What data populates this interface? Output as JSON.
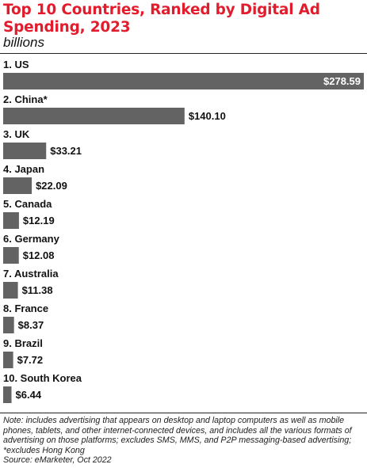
{
  "header": {
    "title": "Top 10 Countries, Ranked by Digital Ad Spending, 2023",
    "subtitle": "billions"
  },
  "footer": {
    "note": "Note: includes advertising that appears on desktop and laptop computers as well as mobile phones, tablets, and other internet-connected devices, and includes all the various formats of advertising on those platforms; excludes SMS, MMS, and P2P messaging-based advertising; *excludes Hong Kong",
    "source": "Source: eMarketer, Oct 2022"
  },
  "colors": {
    "title": "#e31c2d",
    "bar": "#636363",
    "inside_label": "#ffffff",
    "outside_label": "#111111"
  },
  "chart_data": {
    "type": "bar",
    "orientation": "horizontal",
    "title": "Top 10 Countries, Ranked by Digital Ad Spending, 2023",
    "subtitle": "billions",
    "categories": [
      "1. US",
      "2. China*",
      "3. UK",
      "4. Japan",
      "5. Canada",
      "6. Germany",
      "7. Australia",
      "8. France",
      "9. Brazil",
      "10. South Korea"
    ],
    "values": [
      278.59,
      140.1,
      33.21,
      22.09,
      12.19,
      12.08,
      11.38,
      8.37,
      7.72,
      6.44
    ],
    "value_labels": [
      "$278.59",
      "$140.10",
      "$33.21",
      "$22.09",
      "$12.19",
      "$12.08",
      "$11.38",
      "$8.37",
      "$7.72",
      "$6.44"
    ],
    "xlim": [
      0,
      278.59
    ],
    "grid": false,
    "legend": "none"
  }
}
